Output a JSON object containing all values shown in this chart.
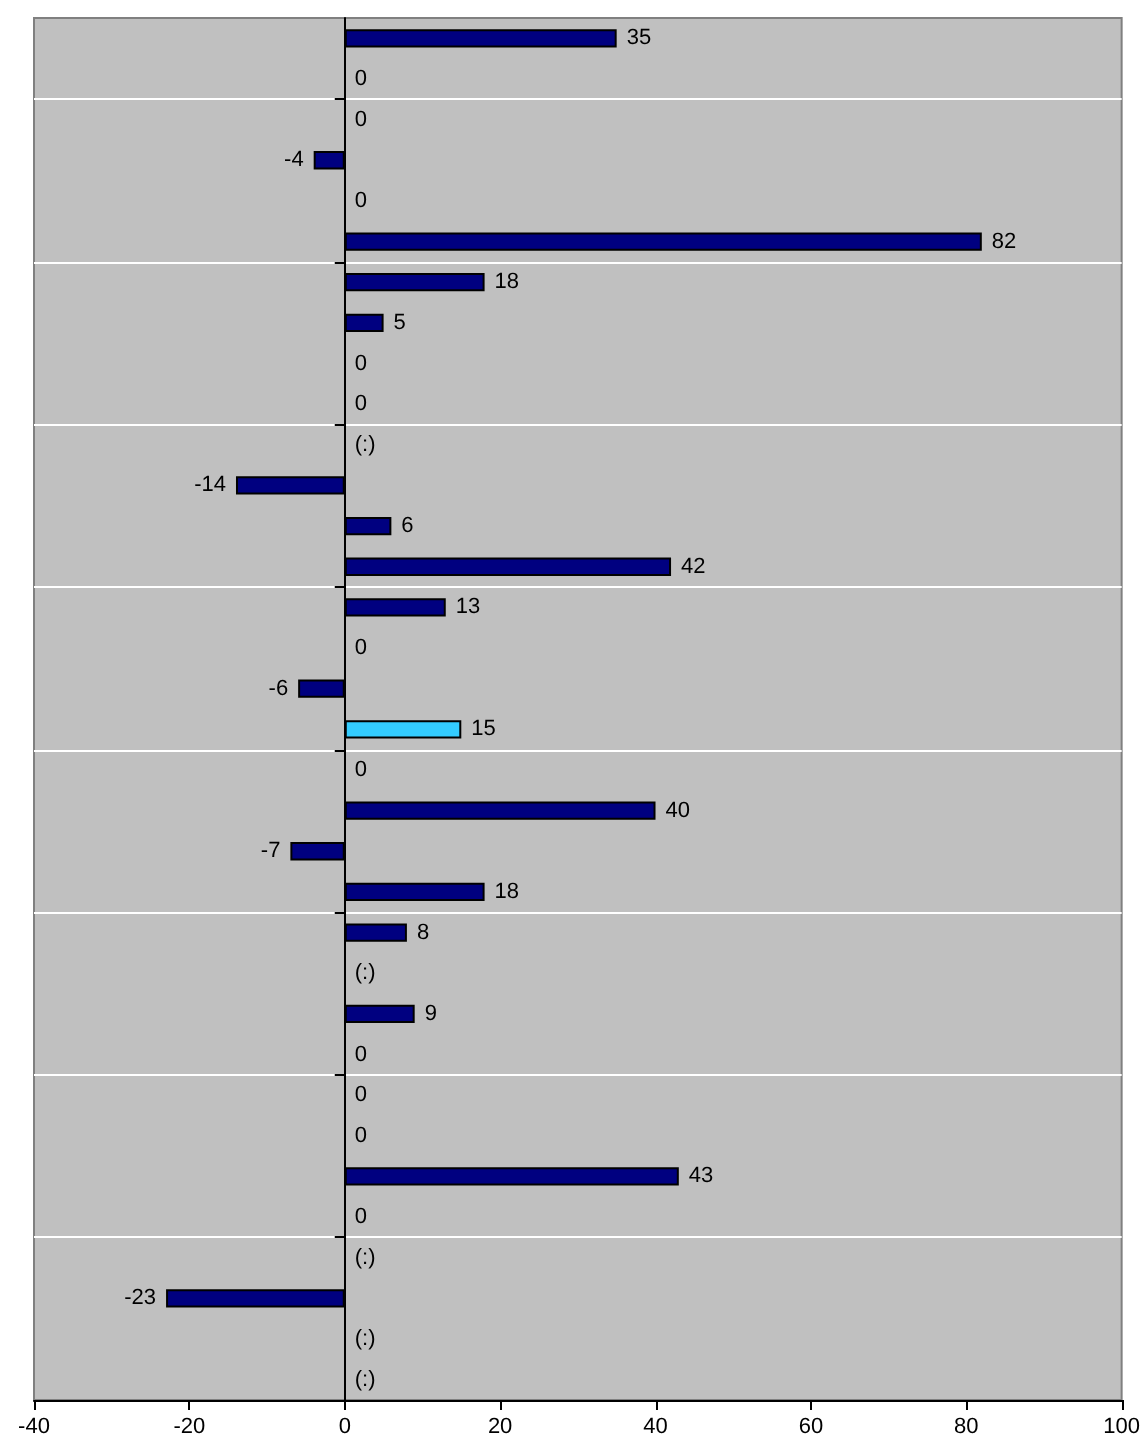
{
  "chart_data": {
    "type": "bar",
    "orientation": "horizontal",
    "categories": [
      null,
      null,
      null,
      null,
      null,
      null,
      null,
      null,
      null,
      null,
      null,
      null,
      null,
      null,
      null,
      null,
      null,
      null,
      null,
      null,
      null,
      null,
      null,
      null,
      null,
      null,
      null,
      null,
      null,
      null,
      null,
      null,
      null,
      null
    ],
    "values": [
      35,
      0,
      0,
      -4,
      0,
      82,
      18,
      5,
      0,
      0,
      null,
      -14,
      6,
      42,
      13,
      0,
      -6,
      15,
      0,
      40,
      -7,
      18,
      8,
      null,
      9,
      0,
      0,
      0,
      43,
      0,
      null,
      -23,
      null,
      null
    ],
    "value_labels": [
      "35",
      "0",
      "0",
      "-4",
      "0",
      "82",
      "18",
      "5",
      "0",
      "0",
      "(:)",
      "-14",
      "6",
      "42",
      "13",
      "0",
      "-6",
      "15",
      "0",
      "40",
      "-7",
      "18",
      "8",
      "(:)",
      "9",
      "0",
      "0",
      "0",
      "43",
      "0",
      "(:)",
      "-23",
      "(:)",
      "(:)"
    ],
    "colors": [
      "#000080",
      "#000080",
      "#000080",
      "#000080",
      "#000080",
      "#000080",
      "#000080",
      "#000080",
      "#000080",
      "#000080",
      "#000080",
      "#000080",
      "#000080",
      "#000080",
      "#000080",
      "#000080",
      "#000080",
      "#33ccff",
      "#000080",
      "#000080",
      "#000080",
      "#000080",
      "#000080",
      "#000080",
      "#000080",
      "#000080",
      "#000080",
      "#000080",
      "#000080",
      "#000080",
      "#000080",
      "#000080",
      "#000080",
      "#000080"
    ],
    "xlim": [
      -40,
      100
    ],
    "xticks": [
      -40,
      -20,
      0,
      20,
      40,
      60,
      80,
      100
    ],
    "grid": "y"
  }
}
